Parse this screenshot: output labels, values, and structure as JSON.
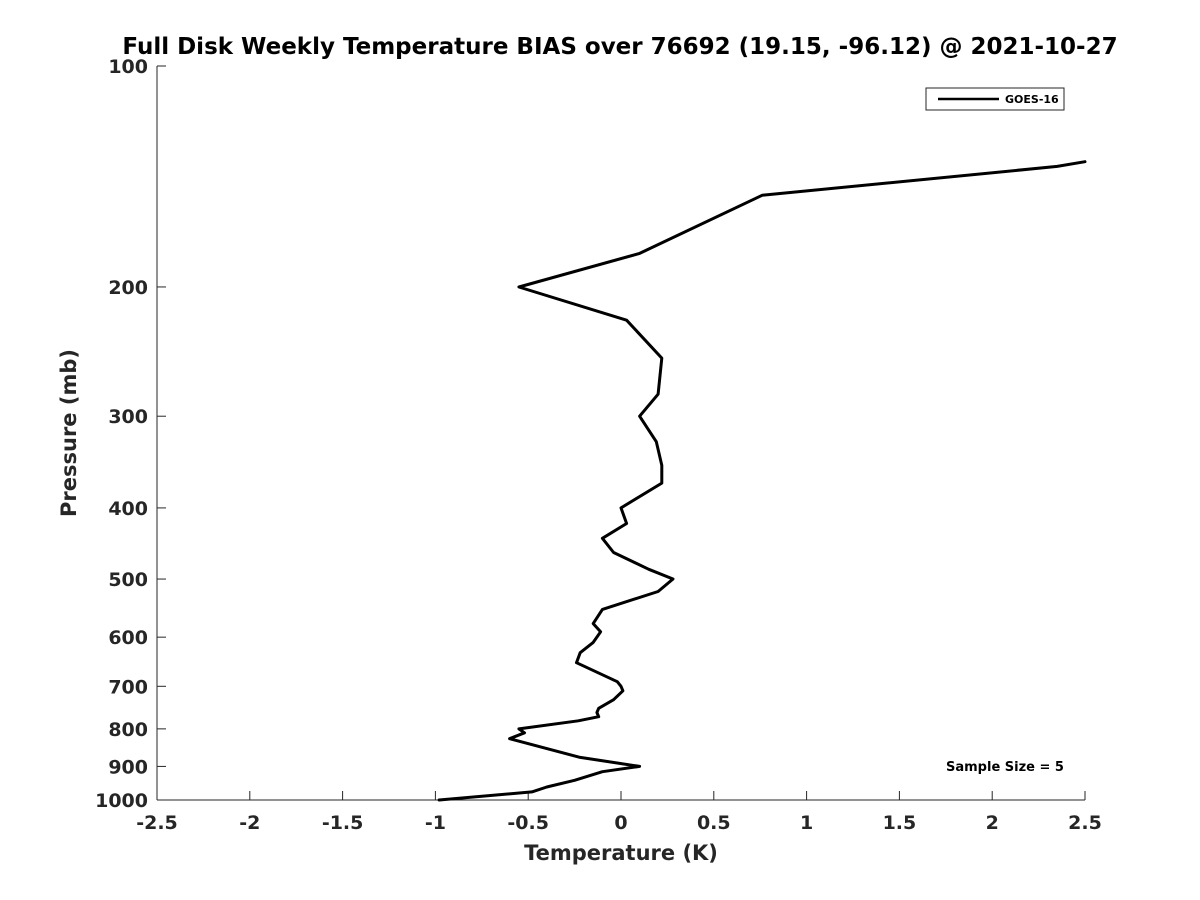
{
  "chart_data": {
    "type": "line",
    "title": "Full Disk Weekly Temperature BIAS over 76692 (19.15, -96.12) @ 2021-10-27",
    "xlabel": "Temperature (K)",
    "ylabel": "Pressure (mb)",
    "xlim": [
      -2.5,
      2.5
    ],
    "ylim": [
      100,
      1000
    ],
    "yscale": "log",
    "yreversed": true,
    "grid": false,
    "x_ticks": [
      -2.5,
      -2,
      -1.5,
      -1,
      -0.5,
      0,
      0.5,
      1,
      1.5,
      2,
      2.5
    ],
    "x_tick_labels": [
      "-2.5",
      "-2",
      "-1.5",
      "-1",
      "-0.5",
      "0",
      "0.5",
      "1",
      "1.5",
      "2",
      "2.5"
    ],
    "y_ticks": [
      100,
      200,
      300,
      400,
      500,
      600,
      700,
      800,
      900,
      1000
    ],
    "y_tick_labels": [
      "100",
      "200",
      "300",
      "400",
      "500",
      "600",
      "700",
      "800",
      "900",
      "1000"
    ],
    "legend": {
      "position": "top-right",
      "entries": [
        "GOES-16"
      ]
    },
    "annotation": "Sample Size = 5",
    "series": [
      {
        "name": "GOES-16",
        "color": "#000000",
        "points": [
          {
            "x": 2.5,
            "y": 135
          },
          {
            "x": 2.35,
            "y": 137
          },
          {
            "x": 0.76,
            "y": 150
          },
          {
            "x": 0.1,
            "y": 180
          },
          {
            "x": -0.55,
            "y": 200
          },
          {
            "x": 0.03,
            "y": 222
          },
          {
            "x": 0.22,
            "y": 250
          },
          {
            "x": 0.2,
            "y": 280
          },
          {
            "x": 0.1,
            "y": 300
          },
          {
            "x": 0.19,
            "y": 325
          },
          {
            "x": 0.22,
            "y": 350
          },
          {
            "x": 0.22,
            "y": 370
          },
          {
            "x": 0.0,
            "y": 400
          },
          {
            "x": 0.03,
            "y": 420
          },
          {
            "x": -0.1,
            "y": 440
          },
          {
            "x": -0.04,
            "y": 460
          },
          {
            "x": 0.15,
            "y": 485
          },
          {
            "x": 0.28,
            "y": 500
          },
          {
            "x": 0.2,
            "y": 520
          },
          {
            "x": -0.1,
            "y": 550
          },
          {
            "x": -0.15,
            "y": 575
          },
          {
            "x": -0.11,
            "y": 590
          },
          {
            "x": -0.15,
            "y": 610
          },
          {
            "x": -0.22,
            "y": 630
          },
          {
            "x": -0.24,
            "y": 650
          },
          {
            "x": -0.02,
            "y": 690
          },
          {
            "x": 0.0,
            "y": 700
          },
          {
            "x": 0.01,
            "y": 710
          },
          {
            "x": -0.04,
            "y": 730
          },
          {
            "x": -0.12,
            "y": 750
          },
          {
            "x": -0.13,
            "y": 760
          },
          {
            "x": -0.12,
            "y": 770
          },
          {
            "x": -0.23,
            "y": 780
          },
          {
            "x": -0.55,
            "y": 800
          },
          {
            "x": -0.52,
            "y": 810
          },
          {
            "x": -0.6,
            "y": 825
          },
          {
            "x": -0.22,
            "y": 875
          },
          {
            "x": 0.1,
            "y": 900
          },
          {
            "x": -0.1,
            "y": 915
          },
          {
            "x": -0.25,
            "y": 940
          },
          {
            "x": -0.4,
            "y": 960
          },
          {
            "x": -0.48,
            "y": 975
          },
          {
            "x": -0.98,
            "y": 1000
          }
        ]
      }
    ]
  }
}
